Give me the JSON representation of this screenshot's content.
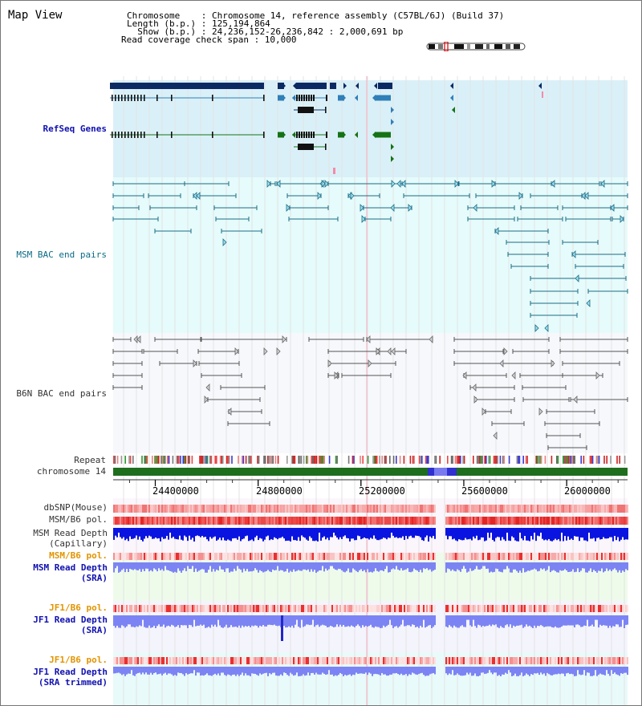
{
  "view": {
    "title": "Map View",
    "info_lines": [
      "Chromosome    : Chromosome 14, reference assembly (C57BL/6J) (Build 37)",
      "Length (b.p.) : 125,194,864",
      "  Show (b.p.) : 24,236,152-26,236,842 : 2,000,691 bp",
      "Read coverage check span : 10,000"
    ]
  },
  "colors": {
    "refseq_bg": "#daf0f8",
    "msm_bac_bg": "#e6fbfb",
    "b6n_bac_bg": "#f6f8fc",
    "gene_dark": "#0b2a63",
    "gene_mid": "#2f7fb8",
    "gene_green": "#157315",
    "msm_line": "#1b6c86",
    "b6n_line": "#555555",
    "chromosome_bar": "#1e6e1e",
    "depth_blue": "#0a14e0",
    "depth_violet": "#7c84f4",
    "pol_red": "#f05050"
  },
  "tracks": {
    "refseq": "RefSeq Genes",
    "msm_bac": "MSM BAC end pairs",
    "b6n_bac": "B6N BAC end pairs",
    "repeat": "Repeat",
    "chromosome": "chromosome 14"
  },
  "axis": {
    "ticks": [
      "24400000",
      "24800000",
      "25200000",
      "25600000",
      "26000000"
    ],
    "tick_values": [
      24400000,
      24800000,
      25200000,
      25600000,
      26000000
    ]
  },
  "lower_tracks": {
    "dbsnp": "dbSNP(Mouse)",
    "msm_b6_pol_1": "MSM/B6 pol.",
    "msm_depth_cap_1": "MSM Read Depth",
    "msm_depth_cap_2": "(Capillary)",
    "msm_b6_pol_2": "MSM/B6 pol.",
    "msm_depth_sra_1": "MSM Read Depth",
    "msm_depth_sra_2": "(SRA)",
    "jf1_b6_pol_1": "JF1/B6 pol.",
    "jf1_depth_sra_1": "JF1 Read Depth",
    "jf1_depth_sra_2": "(SRA)",
    "jf1_b6_pol_2": "JF1/B6 pol.",
    "jf1_depth_trim_1": "JF1 Read Depth",
    "jf1_depth_trim_2": "(SRA trimmed)"
  }
}
